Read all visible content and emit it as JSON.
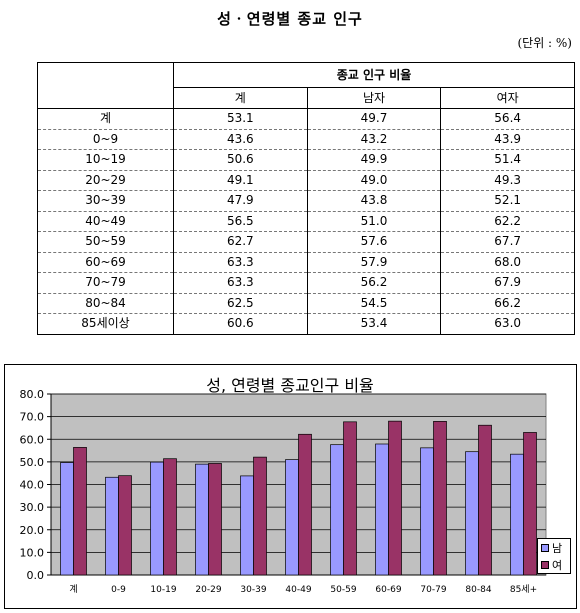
{
  "page": {
    "title": "성ㆍ연령별 종교 인구",
    "unit": "(단위 : %)"
  },
  "table": {
    "group_header": "종교 인구 비율",
    "columns": [
      "계",
      "남자",
      "여자"
    ],
    "rows": [
      {
        "label": "계",
        "total": "53.1",
        "male": "49.7",
        "female": "56.4"
      },
      {
        "label": "0~9",
        "total": "43.6",
        "male": "43.2",
        "female": "43.9"
      },
      {
        "label": "10~19",
        "total": "50.6",
        "male": "49.9",
        "female": "51.4"
      },
      {
        "label": "20~29",
        "total": "49.1",
        "male": "49.0",
        "female": "49.3"
      },
      {
        "label": "30~39",
        "total": "47.9",
        "male": "43.8",
        "female": "52.1"
      },
      {
        "label": "40~49",
        "total": "56.5",
        "male": "51.0",
        "female": "62.2"
      },
      {
        "label": "50~59",
        "total": "62.7",
        "male": "57.6",
        "female": "67.7"
      },
      {
        "label": "60~69",
        "total": "63.3",
        "male": "57.9",
        "female": "68.0"
      },
      {
        "label": "70~79",
        "total": "63.3",
        "male": "56.2",
        "female": "67.9"
      },
      {
        "label": "80~84",
        "total": "62.5",
        "male": "54.5",
        "female": "66.2"
      },
      {
        "label": "85세이상",
        "total": "60.6",
        "male": "53.4",
        "female": "63.0"
      }
    ]
  },
  "chart_data": {
    "type": "bar",
    "title": "성, 연령별 종교인구 비율",
    "categories": [
      "계",
      "0-9",
      "10-19",
      "20-29",
      "30-39",
      "40-49",
      "50-59",
      "60-69",
      "70-79",
      "80-84",
      "85세+"
    ],
    "series": [
      {
        "name": "남",
        "color": "#9999ff",
        "values": [
          49.7,
          43.2,
          49.9,
          49.0,
          43.8,
          51.0,
          57.6,
          57.9,
          56.2,
          54.5,
          53.4
        ]
      },
      {
        "name": "여",
        "color": "#993366",
        "values": [
          56.4,
          43.9,
          51.4,
          49.3,
          52.1,
          62.2,
          67.7,
          68.0,
          67.9,
          66.2,
          63.0
        ]
      }
    ],
    "yticks": [
      "0.0",
      "10.0",
      "20.0",
      "30.0",
      "40.0",
      "50.0",
      "60.0",
      "70.0",
      "80.0"
    ],
    "ylim": [
      0,
      80
    ],
    "plot_background": "#c0c0c0",
    "grid": true,
    "legend": "right"
  }
}
